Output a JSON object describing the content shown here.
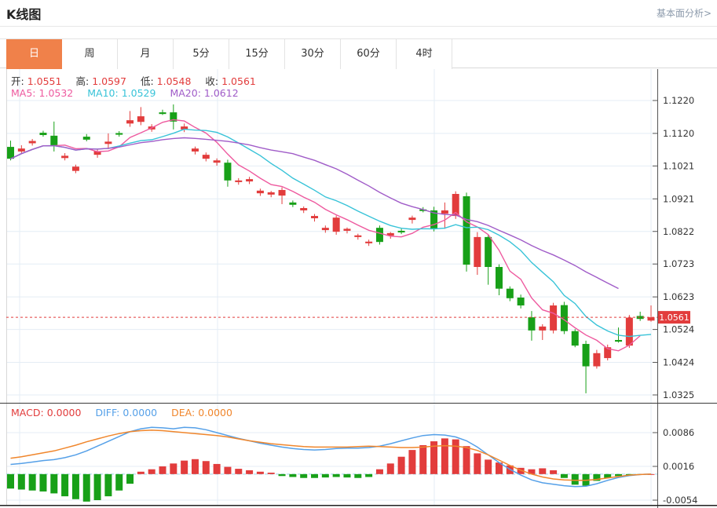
{
  "header": {
    "title": "K线图",
    "link": "基本面分析>"
  },
  "tabs": {
    "items": [
      "日",
      "周",
      "月",
      "5分",
      "15分",
      "30分",
      "60分",
      "4时"
    ],
    "active": 0
  },
  "legend_ohlc": {
    "o_label": "开:",
    "o": "1.0551",
    "h_label": "高:",
    "h": "1.0597",
    "l_label": "低:",
    "l": "1.0548",
    "c_label": "收:",
    "c": "1.0561"
  },
  "legend_ma": {
    "ma5_label": "MA5:",
    "ma5": "1.0532",
    "ma10_label": "MA10:",
    "ma10": "1.0529",
    "ma20_label": "MA20:",
    "ma20": "1.0612"
  },
  "legend_macd": {
    "macd_label": "MACD:",
    "macd": "0.0000",
    "diff_label": "DIFF:",
    "diff": "0.0000",
    "dea_label": "DEA:",
    "dea": "0.0000"
  },
  "price_tag": "1.0561",
  "colors": {
    "up": "#e23c3c",
    "down": "#18a018",
    "ma5": "#ee5a9f",
    "ma10": "#38c3d8",
    "ma20": "#a05cc8",
    "diff": "#55a0e8",
    "dea": "#f0862c",
    "grid": "#e4edf5",
    "axis_line": "#555555",
    "axis_text": "#333333",
    "plot_border": "#d8d8d8",
    "panel_border": "#3a3a3a",
    "tab_active_bg": "#f0814a",
    "link": "#8c9aab",
    "zero_dash": "#9fd8ef",
    "ohlc_label": "#333333"
  },
  "chart_data": {
    "type": "candlestick+macd",
    "title": "K线图",
    "period": "日",
    "legend_position": "top-left",
    "grid": true,
    "price_ticks": [
      1.122,
      1.112,
      1.1021,
      1.0921,
      1.0822,
      1.0723,
      1.0623,
      1.0524,
      1.0424,
      1.0325
    ],
    "last_price": 1.0561,
    "ohlc_last": {
      "open": 1.0551,
      "high": 1.0597,
      "low": 1.0548,
      "close": 1.0561
    },
    "ma_values_last": {
      "ma5": 1.0532,
      "ma10": 1.0529,
      "ma20": 1.0612
    },
    "ma_periods": [
      5,
      10,
      20
    ],
    "candles": [
      [
        1.1079,
        1.1098,
        1.1038,
        1.1043
      ],
      [
        1.1065,
        1.1084,
        1.1058,
        1.1074
      ],
      [
        1.109,
        1.1103,
        1.1083,
        1.1097
      ],
      [
        1.1122,
        1.1128,
        1.111,
        1.1115
      ],
      [
        1.1113,
        1.1156,
        1.1065,
        1.1084
      ],
      [
        1.1045,
        1.106,
        1.1038,
        1.1052
      ],
      [
        1.1006,
        1.1025,
        1.0999,
        1.1019
      ],
      [
        1.111,
        1.1118,
        1.1096,
        1.1101
      ],
      [
        1.1055,
        1.1072,
        1.1046,
        1.1066
      ],
      [
        1.1088,
        1.112,
        1.1072,
        1.1095
      ],
      [
        1.1121,
        1.1127,
        1.111,
        1.1116
      ],
      [
        1.115,
        1.1188,
        1.114,
        1.116
      ],
      [
        1.1155,
        1.12,
        1.1145,
        1.1172
      ],
      [
        1.1132,
        1.1148,
        1.1125,
        1.1141
      ],
      [
        1.1184,
        1.1192,
        1.1176,
        1.1179
      ],
      [
        1.1184,
        1.1208,
        1.1132,
        1.1156
      ],
      [
        1.1132,
        1.115,
        1.1124,
        1.1141
      ],
      [
        1.1065,
        1.108,
        1.1056,
        1.1074
      ],
      [
        1.1043,
        1.1062,
        1.1035,
        1.1055
      ],
      [
        1.1031,
        1.1044,
        1.1022,
        1.1038
      ],
      [
        1.1031,
        1.104,
        1.0958,
        1.0977
      ],
      [
        1.0972,
        1.0984,
        1.0964,
        1.0977
      ],
      [
        1.0974,
        1.0988,
        1.0966,
        1.0981
      ],
      [
        1.0938,
        1.0952,
        1.093,
        1.0946
      ],
      [
        1.0934,
        1.0945,
        1.0926,
        1.0941
      ],
      [
        1.0931,
        1.0956,
        1.0905,
        1.0948
      ],
      [
        1.091,
        1.0916,
        1.0896,
        1.0903
      ],
      [
        1.0886,
        1.0898,
        1.0878,
        1.0893
      ],
      [
        1.0862,
        1.0875,
        1.0852,
        1.0869
      ],
      [
        1.0826,
        1.084,
        1.0818,
        1.0833
      ],
      [
        1.0821,
        1.087,
        1.0812,
        1.0864
      ],
      [
        1.0824,
        1.0834,
        1.0816,
        1.083
      ],
      [
        1.0805,
        1.0815,
        1.0797,
        1.081
      ],
      [
        1.0786,
        1.0797,
        1.0778,
        1.0791
      ],
      [
        1.0833,
        1.084,
        1.0782,
        1.079
      ],
      [
        1.0809,
        1.082,
        1.08,
        1.0817
      ],
      [
        1.0824,
        1.083,
        1.0814,
        1.0819
      ],
      [
        1.0857,
        1.087,
        1.0846,
        1.0864
      ],
      [
        1.0889,
        1.0896,
        1.088,
        1.0884
      ],
      [
        1.0886,
        1.0897,
        1.0822,
        1.0829
      ],
      [
        1.0876,
        1.091,
        1.083,
        1.0886
      ],
      [
        1.0869,
        1.0944,
        1.086,
        1.0936
      ],
      [
        1.0929,
        1.094,
        1.07,
        1.0721
      ],
      [
        1.0714,
        1.082,
        1.069,
        1.0805
      ],
      [
        1.0805,
        1.0812,
        1.066,
        1.0714
      ],
      [
        1.0714,
        1.0722,
        1.0628,
        1.0648
      ],
      [
        1.0648,
        1.0655,
        1.061,
        1.0619
      ],
      [
        1.0621,
        1.063,
        1.0588,
        1.0597
      ],
      [
        1.0561,
        1.058,
        1.049,
        1.0521
      ],
      [
        1.0521,
        1.054,
        1.0492,
        1.0533
      ],
      [
        1.0521,
        1.0605,
        1.0512,
        1.0597
      ],
      [
        1.0598,
        1.0608,
        1.051,
        1.0519
      ],
      [
        1.0519,
        1.0525,
        1.047,
        1.0475
      ],
      [
        1.048,
        1.049,
        1.033,
        1.0412
      ],
      [
        1.0412,
        1.0462,
        1.0405,
        1.0452
      ],
      [
        1.0437,
        1.0478,
        1.043,
        1.047
      ],
      [
        1.0492,
        1.053,
        1.0484,
        1.0487
      ],
      [
        1.0475,
        1.0568,
        1.0468,
        1.056
      ],
      [
        1.0565,
        1.0578,
        1.055,
        1.0556
      ],
      [
        1.0551,
        1.0597,
        1.0548,
        1.0561
      ]
    ],
    "macd": {
      "ticks": [
        0.0086,
        0.0016,
        -0.0054
      ],
      "hist": [
        -0.003,
        -0.0032,
        -0.0034,
        -0.0036,
        -0.004,
        -0.0046,
        -0.0052,
        -0.0057,
        -0.0054,
        -0.0046,
        -0.0034,
        -0.002,
        0.0005,
        0.001,
        0.0016,
        0.0022,
        0.0028,
        0.0031,
        0.0027,
        0.0021,
        0.0015,
        0.0011,
        0.0008,
        0.0005,
        0.0003,
        -0.0004,
        -0.0006,
        -0.0008,
        -0.0008,
        -0.0007,
        -0.0006,
        -0.0007,
        -0.0008,
        -0.0006,
        0.001,
        0.0022,
        0.0036,
        0.005,
        0.006,
        0.0068,
        0.0074,
        0.0072,
        0.0058,
        0.0043,
        0.003,
        0.0024,
        0.0018,
        0.0013,
        0.001,
        0.0012,
        0.0008,
        -0.0008,
        -0.0022,
        -0.0024,
        -0.0014,
        -0.0008,
        -0.0004,
        -0.0003,
        -0.0001,
        0.0
      ],
      "diff": [
        0.002,
        0.0022,
        0.0025,
        0.0028,
        0.003,
        0.0034,
        0.004,
        0.0048,
        0.0058,
        0.0068,
        0.0078,
        0.0088,
        0.0094,
        0.0097,
        0.0096,
        0.0094,
        0.0097,
        0.0096,
        0.0092,
        0.0086,
        0.008,
        0.0074,
        0.0069,
        0.0064,
        0.006,
        0.0056,
        0.0053,
        0.0051,
        0.005,
        0.0051,
        0.0053,
        0.0054,
        0.0054,
        0.0055,
        0.0058,
        0.0063,
        0.0069,
        0.0075,
        0.008,
        0.0082,
        0.0081,
        0.0077,
        0.0069,
        0.0056,
        0.004,
        0.0024,
        0.001,
        -0.0002,
        -0.0012,
        -0.0018,
        -0.0021,
        -0.0024,
        -0.0026,
        -0.0025,
        -0.002,
        -0.0013,
        -0.0007,
        -0.0003,
        -0.0001,
        0.0
      ],
      "dea": [
        0.0033,
        0.0036,
        0.004,
        0.0044,
        0.0048,
        0.0054,
        0.006,
        0.0067,
        0.0073,
        0.0079,
        0.0084,
        0.0088,
        0.009,
        0.0091,
        0.009,
        0.0088,
        0.0086,
        0.0084,
        0.0082,
        0.008,
        0.0077,
        0.0073,
        0.0069,
        0.0066,
        0.0063,
        0.0061,
        0.0059,
        0.0057,
        0.0056,
        0.0056,
        0.0056,
        0.0056,
        0.0057,
        0.0058,
        0.0057,
        0.0056,
        0.0055,
        0.0055,
        0.0056,
        0.0058,
        0.0059,
        0.0058,
        0.0055,
        0.0049,
        0.004,
        0.0029,
        0.0018,
        0.0008,
        0.0,
        -0.0006,
        -0.001,
        -0.0012,
        -0.0013,
        -0.0013,
        -0.0011,
        -0.0008,
        -0.0005,
        -0.0002,
        -0.0001,
        0.0
      ]
    }
  }
}
